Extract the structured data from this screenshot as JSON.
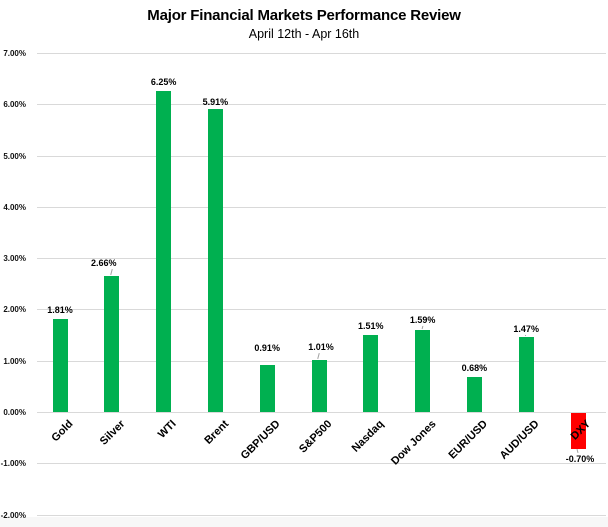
{
  "header": {
    "title": "Major Financial Markets Performance Review",
    "subtitle": "April 12th - Apr 16th"
  },
  "chart_data": {
    "type": "bar",
    "title": "Major Financial Markets Performance Review",
    "subtitle": "April 12th - Apr 16th",
    "categories": [
      "Gold",
      "Silver",
      "WTI",
      "Brent",
      "GBP/USD",
      "S&P500",
      "Nasdaq",
      "Dow Jones",
      "EUR/USD",
      "AUD/USD",
      "DXY"
    ],
    "values": [
      1.81,
      2.66,
      6.25,
      5.91,
      0.91,
      1.01,
      1.51,
      1.59,
      0.68,
      1.47,
      -0.7
    ],
    "data_labels": [
      "1.81%",
      "2.66%",
      "6.25%",
      "5.91%",
      "0.91%",
      "1.01%",
      "1.51%",
      "1.59%",
      "0.68%",
      "1.47%",
      "-0.70%"
    ],
    "xlabel": "",
    "ylabel": "",
    "ylim": [
      -2,
      7
    ],
    "ytick_step": 1,
    "ytick_labels": [
      "7.00%",
      "6.00%",
      "5.00%",
      "4.00%",
      "3.00%",
      "2.00%",
      "1.00%",
      "0.00%",
      "-1.00%",
      "-2.00%"
    ],
    "grid": true,
    "legend": "none",
    "colors": {
      "positive_bar": "#00B050",
      "negative_bar": "#FF0000",
      "gridline": "#D9D9D9",
      "text": "#000000",
      "leader_line": "#A0A0A0"
    }
  }
}
